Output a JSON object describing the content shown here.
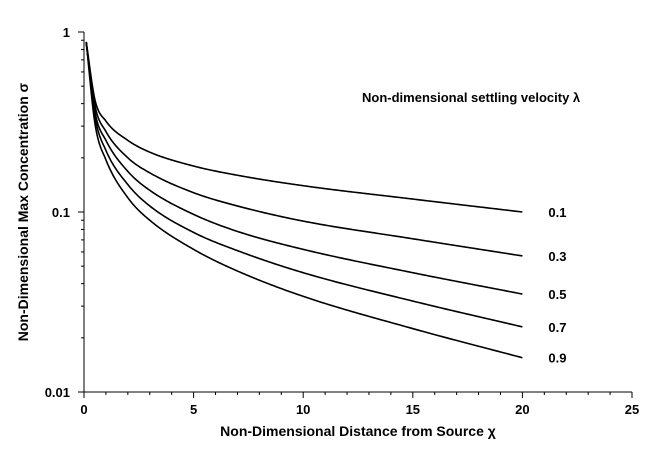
{
  "chart_data": {
    "type": "line",
    "xlabel": "Non-Dimensional Distance from Source χ",
    "ylabel": "Non-Dimensional Max Concentration σ",
    "legend_title": "Non-dimensional settling velocity λ",
    "xlim": [
      0,
      25
    ],
    "ylim": [
      0.01,
      1
    ],
    "yscale": "log",
    "x_ticks": [
      0,
      5,
      10,
      15,
      20,
      25
    ],
    "x_tick_labels": [
      "0",
      "5",
      "10",
      "15",
      "20",
      "25"
    ],
    "y_ticks": [
      0.01,
      0.1,
      1
    ],
    "y_tick_labels": [
      "0.01",
      "0.1",
      "1"
    ],
    "grid": false,
    "series": [
      {
        "name": "0.1",
        "x": [
          0.1,
          0.5,
          1,
          2,
          3,
          5,
          7,
          10,
          15,
          20
        ],
        "y": [
          0.88,
          0.42,
          0.32,
          0.25,
          0.215,
          0.18,
          0.16,
          0.14,
          0.118,
          0.1
        ]
      },
      {
        "name": "0.3",
        "x": [
          0.1,
          0.5,
          1,
          2,
          3,
          5,
          7,
          10,
          15,
          20
        ],
        "y": [
          0.88,
          0.39,
          0.28,
          0.2,
          0.165,
          0.128,
          0.108,
          0.089,
          0.071,
          0.057
        ]
      },
      {
        "name": "0.5",
        "x": [
          0.1,
          0.5,
          1,
          2,
          3,
          5,
          7,
          10,
          15,
          20
        ],
        "y": [
          0.88,
          0.36,
          0.25,
          0.168,
          0.132,
          0.097,
          0.078,
          0.062,
          0.046,
          0.035
        ]
      },
      {
        "name": "0.7",
        "x": [
          0.1,
          0.5,
          1,
          2,
          3,
          5,
          7,
          10,
          15,
          20
        ],
        "y": [
          0.88,
          0.34,
          0.22,
          0.142,
          0.108,
          0.077,
          0.061,
          0.046,
          0.032,
          0.023
        ]
      },
      {
        "name": "0.9",
        "x": [
          0.1,
          0.5,
          1,
          2,
          3,
          5,
          7,
          10,
          15,
          20
        ],
        "y": [
          0.88,
          0.31,
          0.195,
          0.12,
          0.09,
          0.062,
          0.047,
          0.034,
          0.0225,
          0.0155
        ]
      }
    ]
  }
}
